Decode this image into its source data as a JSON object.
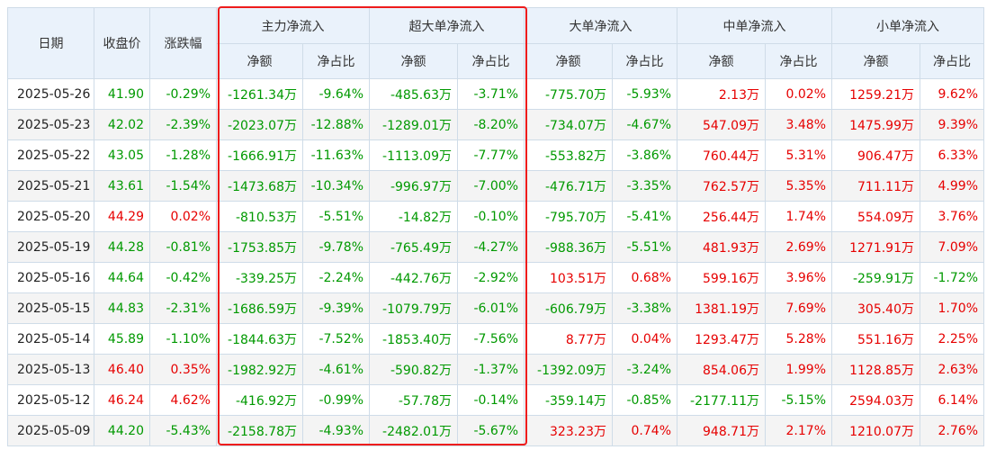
{
  "header": {
    "date": "日期",
    "close": "收盘价",
    "change": "涨跌幅",
    "main": "主力净流入",
    "super": "超大单净流入",
    "large": "大单净流入",
    "medium": "中单净流入",
    "small": "小单净流入",
    "amount": "净额",
    "ratio": "净占比"
  },
  "colors": {
    "up": "#e60000",
    "down": "#009900",
    "highlight": "#ee1c1c",
    "header_bg": "#eaf2fb"
  },
  "rows": [
    {
      "date": "2025-05-26",
      "close": "41.90",
      "change": "-0.29%",
      "main": "-1261.34万",
      "main_r": "-9.64%",
      "super": "-485.63万",
      "super_r": "-3.71%",
      "large": "-775.70万",
      "large_r": "-5.93%",
      "medium": "2.13万",
      "medium_r": "0.02%",
      "small": "1259.21万",
      "small_r": "9.62%"
    },
    {
      "date": "2025-05-23",
      "close": "42.02",
      "change": "-2.39%",
      "main": "-2023.07万",
      "main_r": "-12.88%",
      "super": "-1289.01万",
      "super_r": "-8.20%",
      "large": "-734.07万",
      "large_r": "-4.67%",
      "medium": "547.09万",
      "medium_r": "3.48%",
      "small": "1475.99万",
      "small_r": "9.39%"
    },
    {
      "date": "2025-05-22",
      "close": "43.05",
      "change": "-1.28%",
      "main": "-1666.91万",
      "main_r": "-11.63%",
      "super": "-1113.09万",
      "super_r": "-7.77%",
      "large": "-553.82万",
      "large_r": "-3.86%",
      "medium": "760.44万",
      "medium_r": "5.31%",
      "small": "906.47万",
      "small_r": "6.33%"
    },
    {
      "date": "2025-05-21",
      "close": "43.61",
      "change": "-1.54%",
      "main": "-1473.68万",
      "main_r": "-10.34%",
      "super": "-996.97万",
      "super_r": "-7.00%",
      "large": "-476.71万",
      "large_r": "-3.35%",
      "medium": "762.57万",
      "medium_r": "5.35%",
      "small": "711.11万",
      "small_r": "4.99%"
    },
    {
      "date": "2025-05-20",
      "close": "44.29",
      "change": "0.02%",
      "main": "-810.53万",
      "main_r": "-5.51%",
      "super": "-14.82万",
      "super_r": "-0.10%",
      "large": "-795.70万",
      "large_r": "-5.41%",
      "medium": "256.44万",
      "medium_r": "1.74%",
      "small": "554.09万",
      "small_r": "3.76%"
    },
    {
      "date": "2025-05-19",
      "close": "44.28",
      "change": "-0.81%",
      "main": "-1753.85万",
      "main_r": "-9.78%",
      "super": "-765.49万",
      "super_r": "-4.27%",
      "large": "-988.36万",
      "large_r": "-5.51%",
      "medium": "481.93万",
      "medium_r": "2.69%",
      "small": "1271.91万",
      "small_r": "7.09%"
    },
    {
      "date": "2025-05-16",
      "close": "44.64",
      "change": "-0.42%",
      "main": "-339.25万",
      "main_r": "-2.24%",
      "super": "-442.76万",
      "super_r": "-2.92%",
      "large": "103.51万",
      "large_r": "0.68%",
      "medium": "599.16万",
      "medium_r": "3.96%",
      "small": "-259.91万",
      "small_r": "-1.72%"
    },
    {
      "date": "2025-05-15",
      "close": "44.83",
      "change": "-2.31%",
      "main": "-1686.59万",
      "main_r": "-9.39%",
      "super": "-1079.79万",
      "super_r": "-6.01%",
      "large": "-606.79万",
      "large_r": "-3.38%",
      "medium": "1381.19万",
      "medium_r": "7.69%",
      "small": "305.40万",
      "small_r": "1.70%"
    },
    {
      "date": "2025-05-14",
      "close": "45.89",
      "change": "-1.10%",
      "main": "-1844.63万",
      "main_r": "-7.52%",
      "super": "-1853.40万",
      "super_r": "-7.56%",
      "large": "8.77万",
      "large_r": "0.04%",
      "medium": "1293.47万",
      "medium_r": "5.28%",
      "small": "551.16万",
      "small_r": "2.25%"
    },
    {
      "date": "2025-05-13",
      "close": "46.40",
      "change": "0.35%",
      "main": "-1982.92万",
      "main_r": "-4.61%",
      "super": "-590.82万",
      "super_r": "-1.37%",
      "large": "-1392.09万",
      "large_r": "-3.24%",
      "medium": "854.06万",
      "medium_r": "1.99%",
      "small": "1128.85万",
      "small_r": "2.63%"
    },
    {
      "date": "2025-05-12",
      "close": "46.24",
      "change": "4.62%",
      "main": "-416.92万",
      "main_r": "-0.99%",
      "super": "-57.78万",
      "super_r": "-0.14%",
      "large": "-359.14万",
      "large_r": "-0.85%",
      "medium": "-2177.11万",
      "medium_r": "-5.15%",
      "small": "2594.03万",
      "small_r": "6.14%"
    },
    {
      "date": "2025-05-09",
      "close": "44.20",
      "change": "-5.43%",
      "main": "-2158.78万",
      "main_r": "-4.93%",
      "super": "-2482.01万",
      "super_r": "-5.67%",
      "large": "323.23万",
      "large_r": "0.74%",
      "medium": "948.71万",
      "medium_r": "2.17%",
      "small": "1210.07万",
      "small_r": "2.76%"
    }
  ]
}
